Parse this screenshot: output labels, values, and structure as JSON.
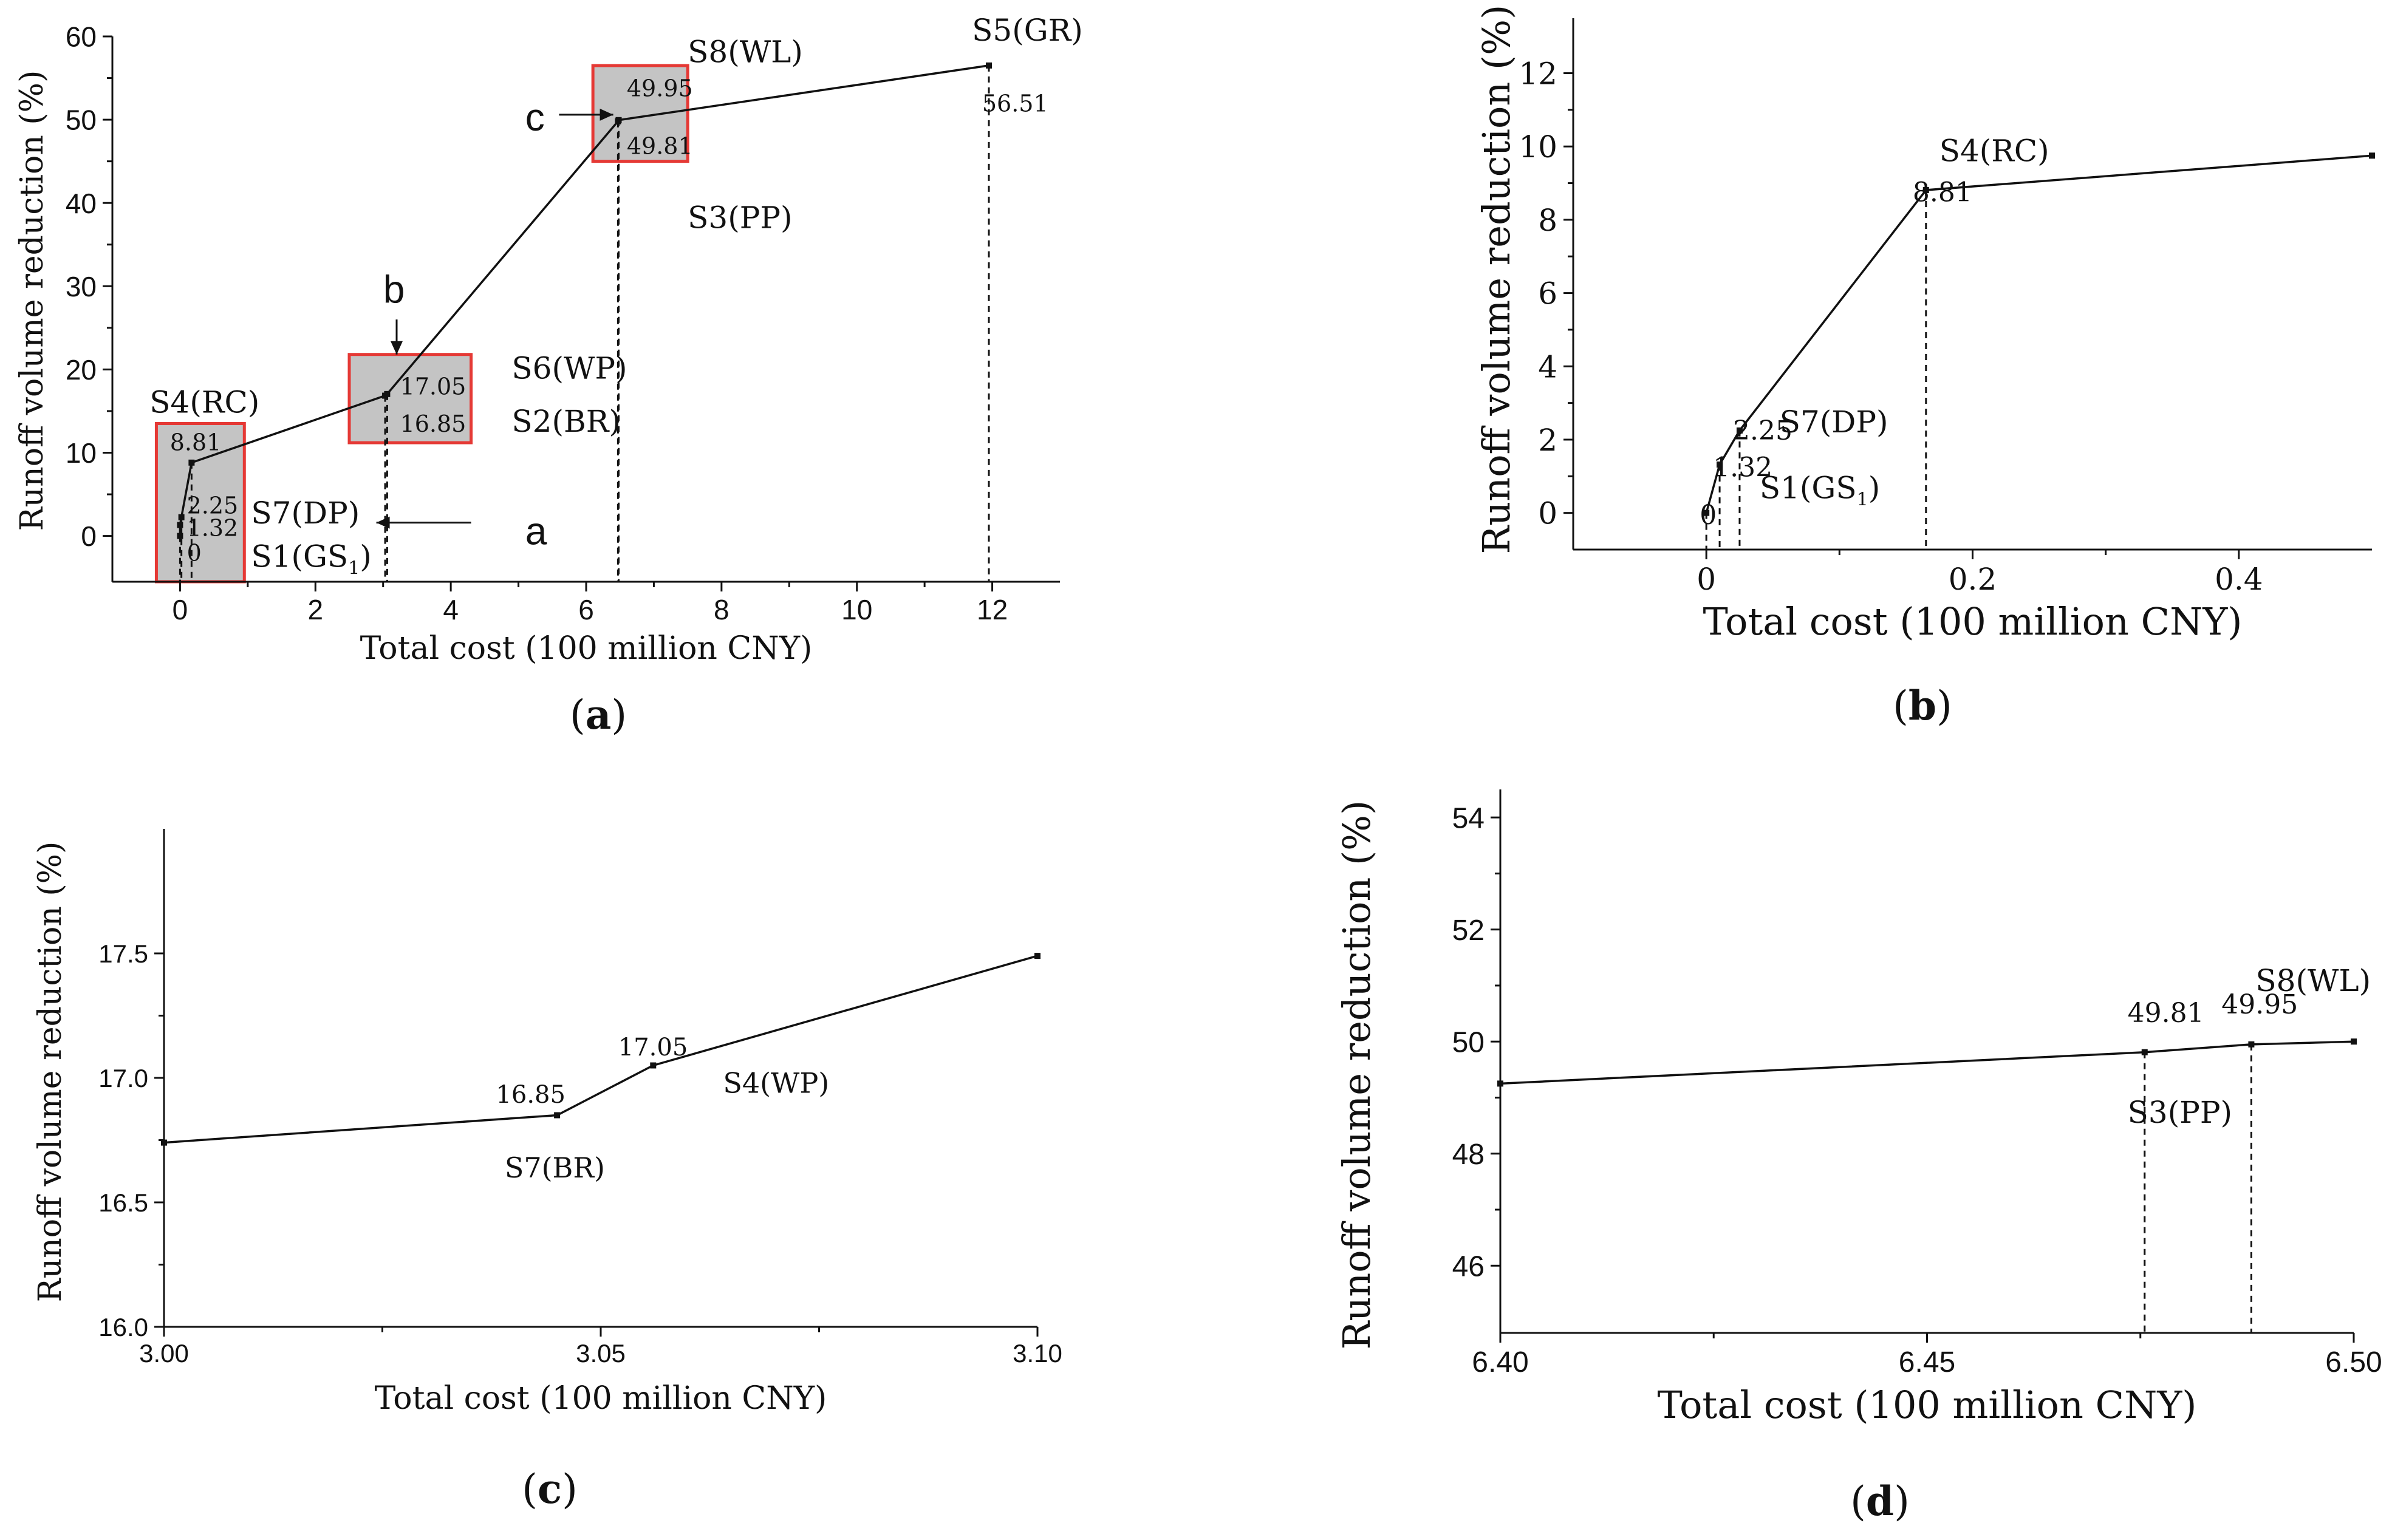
{
  "chart_data": [
    {
      "type": "line",
      "panel": "a",
      "caption_letter": "a",
      "caption_open": "(",
      "caption_close": ")",
      "xlabel": "Total cost (100 million CNY)",
      "ylabel": "Runoff volume reduction (%)",
      "xlim": [
        -1.0,
        13.0
      ],
      "ylim": [
        -5.5,
        60
      ],
      "xticks": [
        0,
        2,
        4,
        6,
        8,
        10,
        12
      ],
      "yticks": [
        0,
        10,
        20,
        30,
        40,
        50,
        60
      ],
      "series": [
        {
          "name": "Runoff volume reduction",
          "x": [
            0.0,
            0.0,
            0.02,
            0.17,
            3.03,
            3.06,
            6.47,
            6.48,
            11.95
          ],
          "y": [
            0.0,
            1.32,
            2.25,
            8.81,
            16.85,
            17.05,
            49.81,
            49.95,
            56.51
          ]
        }
      ],
      "zoom_boxes": [
        {
          "x0": -0.35,
          "x1": 0.95,
          "y0": -5.5,
          "y1": 13.5
        },
        {
          "x0": 2.5,
          "x1": 4.3,
          "y0": 11.2,
          "y1": 21.8
        },
        {
          "x0": 6.1,
          "x1": 7.5,
          "y0": 45.0,
          "y1": 56.5
        }
      ],
      "vlines": [
        0.0,
        0.02,
        0.17,
        3.03,
        3.06,
        6.47,
        6.48,
        11.95
      ],
      "value_labels": [
        {
          "text": "0",
          "x": 0.1,
          "y": -3.0
        },
        {
          "text": "1.32",
          "x": 0.1,
          "y": 0.0
        },
        {
          "text": "2.25",
          "x": 0.1,
          "y": 2.7
        },
        {
          "text": "8.81",
          "x": -0.15,
          "y": 10.3
        },
        {
          "text": "17.05",
          "x": 3.25,
          "y": 17.0
        },
        {
          "text": "16.85",
          "x": 3.25,
          "y": 12.5
        },
        {
          "text": "49.95",
          "x": 6.6,
          "y": 52.8
        },
        {
          "text": "49.81",
          "x": 6.6,
          "y": 45.9
        },
        {
          "text": "56.51",
          "x": 11.85,
          "y": 51.0
        }
      ],
      "scheme_labels": [
        {
          "text": "S4(RC)",
          "x": -0.45,
          "y": 14.8
        },
        {
          "text": "S7(DP)",
          "x": 1.05,
          "y": 1.5
        },
        {
          "text": "S1(GS",
          "sub": "1",
          "close": ")",
          "x": 1.05,
          "y": -3.7
        },
        {
          "text": "S6(WP)",
          "x": 4.9,
          "y": 18.9
        },
        {
          "text": "S2(BR)",
          "x": 4.9,
          "y": 12.5
        },
        {
          "text": "S8(WL)",
          "x": 7.5,
          "y": 56.9
        },
        {
          "text": "S3(PP)",
          "x": 7.5,
          "y": 37.0
        },
        {
          "text": "S5(GR)",
          "x": 11.7,
          "y": 59.5
        }
      ],
      "annotations": [
        {
          "text": "a",
          "tx": 5.1,
          "ty": -1.0,
          "ax_from": 4.3,
          "ay_from": 1.6,
          "ax_to": 2.9,
          "ay_to": 1.6
        },
        {
          "text": "b",
          "tx": 3.0,
          "ty": 28.0,
          "ax_from": 3.2,
          "ay_from": 26.0,
          "ax_to": 3.2,
          "ay_to": 21.8
        },
        {
          "text": "c",
          "tx": 5.1,
          "ty": 48.7,
          "ax_from": 5.6,
          "ay_from": 50.6,
          "ax_to": 6.4,
          "ay_to": 50.6
        }
      ]
    },
    {
      "type": "line",
      "panel": "b",
      "caption_letter": "b",
      "caption_open": "(",
      "caption_close": ")",
      "xlabel": "Total cost (100 million CNY)",
      "ylabel": "Runoff volume reduction (%)",
      "xlim": [
        -0.1,
        0.5
      ],
      "ylim": [
        -1.0,
        13.5
      ],
      "xticks": [
        0.0,
        0.2,
        0.4
      ],
      "yticks": [
        0,
        2,
        4,
        6,
        8,
        10,
        12
      ],
      "series": [
        {
          "name": "Runoff volume reduction",
          "x": [
            0.0,
            0.01,
            0.025,
            0.165,
            0.5
          ],
          "y": [
            0.0,
            1.32,
            2.25,
            8.81,
            9.75
          ]
        }
      ],
      "vlines": [
        0.0,
        0.01,
        0.025,
        0.165
      ],
      "value_labels": [
        {
          "text": "0",
          "x": -0.005,
          "y": -0.3
        },
        {
          "text": "1.32",
          "x": 0.005,
          "y": 1.0
        },
        {
          "text": "2.25",
          "x": 0.02,
          "y": 2.0
        },
        {
          "text": "8.81",
          "x": 0.155,
          "y": 8.5
        }
      ],
      "scheme_labels": [
        {
          "text": "S4(RC)",
          "x": 0.175,
          "y": 9.6
        },
        {
          "text": "S7(DP)",
          "x": 0.055,
          "y": 2.2
        },
        {
          "text": "S1(GS",
          "sub": "1",
          "close": ")",
          "x": 0.04,
          "y": 0.4
        }
      ]
    },
    {
      "type": "line",
      "panel": "c",
      "caption_letter": "c",
      "caption_open": "(",
      "caption_close": ")",
      "xlabel": "Total cost (100 million CNY)",
      "ylabel": "Runoff volume reduction (%)",
      "xlim": [
        3.0,
        3.1
      ],
      "ylim": [
        16.0,
        18.0
      ],
      "xticks": [
        "3.00",
        "3.05",
        "3.10"
      ],
      "yticks": [
        "16.0",
        "16.5",
        "17.0",
        "17.5"
      ],
      "series": [
        {
          "name": "Runoff volume reduction",
          "x": [
            3.0,
            3.045,
            3.056,
            3.1
          ],
          "y": [
            16.74,
            16.85,
            17.05,
            17.49
          ]
        }
      ],
      "value_labels": [
        {
          "text": "16.85",
          "x": 3.038,
          "y": 16.9
        },
        {
          "text": "17.05",
          "x": 3.052,
          "y": 17.09
        }
      ],
      "scheme_labels": [
        {
          "text": "S7(BR)",
          "x": 3.039,
          "y": 16.6
        },
        {
          "text": "S4(WP)",
          "x": 3.064,
          "y": 16.94
        }
      ]
    },
    {
      "type": "line",
      "panel": "d",
      "caption_letter": "d",
      "caption_open": "(",
      "caption_close": ")",
      "xlabel": "Total cost (100 million CNY)",
      "ylabel": "Runoff volume reduction (%)",
      "xlim": [
        6.4,
        6.5
      ],
      "ylim": [
        44.8,
        54.5
      ],
      "xticks": [
        "6.40",
        "6.45",
        "6.50"
      ],
      "yticks": [
        46,
        48,
        50,
        52,
        54
      ],
      "series": [
        {
          "name": "Runoff volume reduction",
          "x": [
            6.4,
            6.4755,
            6.488,
            6.5
          ],
          "y": [
            49.25,
            49.81,
            49.95,
            50.0
          ]
        }
      ],
      "vlines": [
        6.4755,
        6.488
      ],
      "value_labels": [
        {
          "text": "49.81",
          "x": 6.4735,
          "y": 50.35
        },
        {
          "text": "49.95",
          "x": 6.4845,
          "y": 50.5
        }
      ],
      "scheme_labels": [
        {
          "text": "S3(PP)",
          "x": 6.4735,
          "y": 48.55
        },
        {
          "text": "S8(WL)",
          "x": 6.4885,
          "y": 50.9
        }
      ]
    }
  ]
}
